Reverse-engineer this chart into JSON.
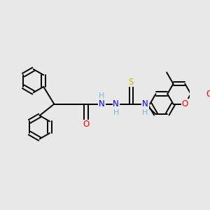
{
  "bg_color": "#e8e8e8",
  "atom_colors": {
    "H": "#7ab8d4",
    "N": "#0000ff",
    "O": "#ff0000",
    "S": "#ccaa00"
  },
  "bond_lw": 1.4,
  "font_size": 8.5,
  "ring_r": 0.62
}
